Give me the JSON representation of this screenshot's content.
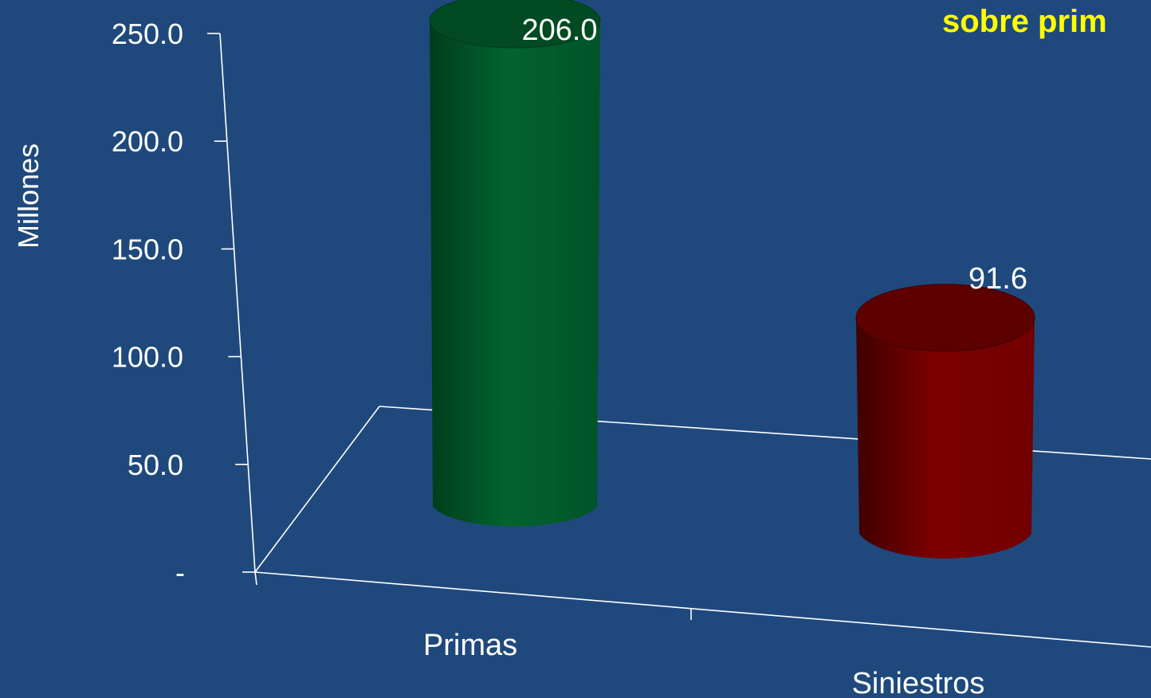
{
  "chart_data": {
    "type": "bar",
    "title": "sobre prim",
    "ylabel": "Millones",
    "categories": [
      "Primas",
      "Siniestros"
    ],
    "values": [
      206.0,
      91.6
    ],
    "data_labels": [
      "206.0",
      "91.6"
    ],
    "colors": [
      "#00602e",
      "#7a0000"
    ],
    "ylim": [
      0,
      250
    ],
    "yticks": [
      {
        "value": 0,
        "label": "-"
      },
      {
        "value": 50,
        "label": "50.0"
      },
      {
        "value": 100,
        "label": "100.0"
      },
      {
        "value": 150,
        "label": "150.0"
      },
      {
        "value": 200,
        "label": "200.0"
      },
      {
        "value": 250,
        "label": "250.0"
      }
    ],
    "grid": false,
    "legend": "none",
    "style": "3d-cylinder",
    "background_color": "#1f497d",
    "title_color": "#ffff00"
  }
}
